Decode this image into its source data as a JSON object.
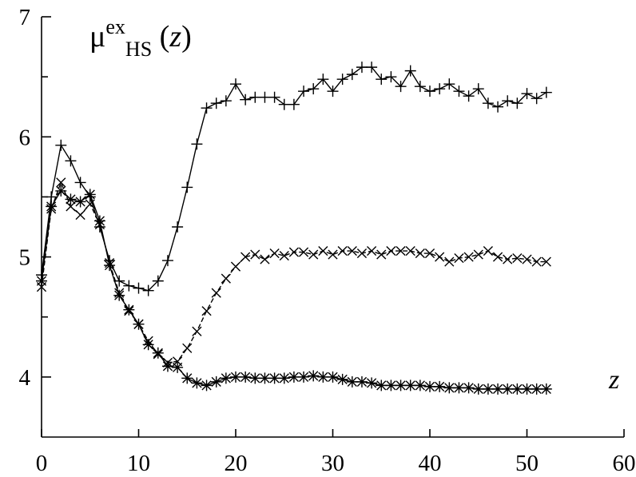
{
  "chart_data": {
    "type": "line",
    "title": {
      "base": "μ",
      "sup": "ex",
      "sub": "HS",
      "arg_open": " (",
      "arg_var": "z",
      "arg_close": ")"
    },
    "xlabel": "z",
    "ylabel": "",
    "xlim": [
      0,
      60
    ],
    "ylim": [
      3.5,
      7.0
    ],
    "x_ticks": [
      0,
      10,
      20,
      30,
      40,
      50,
      60
    ],
    "x_tick_labels": [
      "0",
      "10",
      "20",
      "30",
      "40",
      "50",
      "60"
    ],
    "y_ticks": [
      4,
      4.5,
      5,
      5.5,
      6,
      6.5,
      7
    ],
    "y_tick_labels": [
      "4",
      "",
      "5",
      "",
      "6",
      "",
      "7"
    ],
    "grid": false,
    "series": [
      {
        "marker": "plus",
        "line": "solid",
        "x": [
          0,
          1,
          2,
          3,
          4,
          5,
          6,
          7,
          8,
          9,
          10,
          11,
          12,
          13,
          14,
          15,
          16,
          17,
          18,
          19,
          20,
          21,
          22,
          23,
          24,
          25,
          26,
          27,
          28,
          29,
          30,
          31,
          32,
          33,
          34,
          35,
          36,
          37,
          38,
          39,
          40,
          41,
          42,
          43,
          44,
          45,
          46,
          47,
          48,
          49,
          50,
          51,
          52
        ],
        "y": [
          4.85,
          5.5,
          5.93,
          5.8,
          5.62,
          5.5,
          5.25,
          4.97,
          4.8,
          4.76,
          4.74,
          4.72,
          4.8,
          4.97,
          5.25,
          5.58,
          5.94,
          6.24,
          6.28,
          6.3,
          6.44,
          6.31,
          6.33,
          6.33,
          6.33,
          6.27,
          6.27,
          6.38,
          6.4,
          6.48,
          6.38,
          6.48,
          6.52,
          6.58,
          6.58,
          6.48,
          6.5,
          6.42,
          6.55,
          6.42,
          6.38,
          6.4,
          6.44,
          6.38,
          6.34,
          6.4,
          6.28,
          6.25,
          6.3,
          6.28,
          6.36,
          6.32,
          6.37
        ]
      },
      {
        "marker": "cross",
        "line": "dashed",
        "x": [
          0,
          1,
          2,
          3,
          4,
          5,
          6,
          7,
          8,
          9,
          10,
          11,
          12,
          13,
          14,
          15,
          16,
          17,
          18,
          19,
          20,
          21,
          22,
          23,
          24,
          25,
          26,
          27,
          28,
          29,
          30,
          31,
          32,
          33,
          34,
          35,
          36,
          37,
          38,
          39,
          40,
          41,
          42,
          43,
          44,
          45,
          46,
          47,
          48,
          49,
          50,
          51,
          52
        ],
        "y": [
          4.75,
          5.4,
          5.62,
          5.42,
          5.35,
          5.44,
          5.27,
          4.95,
          4.7,
          4.55,
          4.44,
          4.3,
          4.19,
          4.12,
          4.13,
          4.24,
          4.38,
          4.55,
          4.7,
          4.82,
          4.92,
          5.0,
          5.02,
          4.98,
          5.03,
          5.01,
          5.04,
          5.04,
          5.02,
          5.05,
          5.02,
          5.05,
          5.05,
          5.03,
          5.05,
          5.02,
          5.05,
          5.05,
          5.05,
          5.03,
          5.03,
          5.0,
          4.96,
          4.99,
          5.0,
          5.02,
          5.05,
          5.0,
          4.98,
          4.99,
          4.98,
          4.96,
          4.96
        ]
      },
      {
        "marker": "asterisk",
        "line": "solid",
        "x": [
          0,
          1,
          2,
          3,
          4,
          5,
          6,
          7,
          8,
          9,
          10,
          11,
          12,
          13,
          14,
          15,
          16,
          17,
          18,
          19,
          20,
          21,
          22,
          23,
          24,
          25,
          26,
          27,
          28,
          29,
          30,
          31,
          32,
          33,
          34,
          35,
          36,
          37,
          38,
          39,
          40,
          41,
          42,
          43,
          44,
          45,
          46,
          47,
          48,
          49,
          50,
          51,
          52
        ],
        "y": [
          4.8,
          5.42,
          5.55,
          5.48,
          5.46,
          5.52,
          5.3,
          4.93,
          4.68,
          4.56,
          4.44,
          4.27,
          4.2,
          4.09,
          4.08,
          3.99,
          3.95,
          3.93,
          3.96,
          3.99,
          4.0,
          4.0,
          3.99,
          3.99,
          3.99,
          3.99,
          4.0,
          4.0,
          4.01,
          4.0,
          4.0,
          3.98,
          3.96,
          3.96,
          3.95,
          3.93,
          3.93,
          3.93,
          3.93,
          3.93,
          3.92,
          3.92,
          3.91,
          3.91,
          3.91,
          3.9,
          3.9,
          3.9,
          3.9,
          3.9,
          3.9,
          3.9,
          3.9
        ]
      }
    ]
  }
}
